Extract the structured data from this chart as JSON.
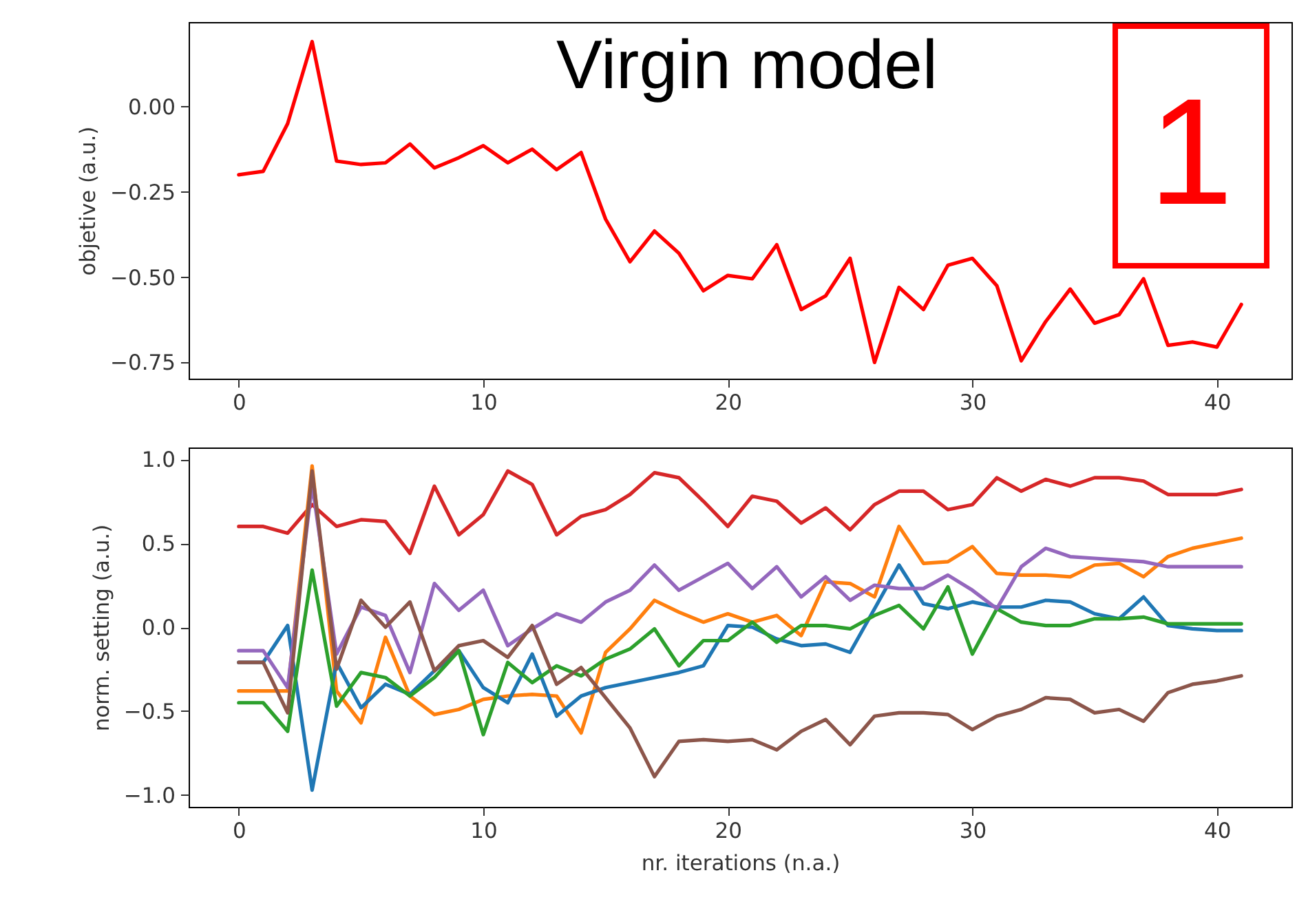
{
  "chart_data": [
    {
      "type": "line",
      "ylabel": "objetive (a.u.)",
      "annotations": [
        "Virgin model",
        "1"
      ],
      "x": [
        0,
        1,
        2,
        3,
        4,
        5,
        6,
        7,
        8,
        9,
        10,
        11,
        12,
        13,
        14,
        15,
        16,
        17,
        18,
        19,
        20,
        21,
        22,
        23,
        24,
        25,
        26,
        27,
        28,
        29,
        30,
        31,
        32,
        33,
        34,
        35,
        36,
        37,
        38,
        39,
        40,
        41
      ],
      "series": [
        {
          "color": "#ff0000",
          "values": [
            -0.2,
            -0.19,
            -0.05,
            0.19,
            -0.16,
            -0.17,
            -0.165,
            -0.11,
            -0.18,
            -0.15,
            -0.115,
            -0.165,
            -0.125,
            -0.185,
            -0.135,
            -0.33,
            -0.455,
            -0.365,
            -0.43,
            -0.54,
            -0.495,
            -0.505,
            -0.405,
            -0.595,
            -0.555,
            -0.445,
            -0.75,
            -0.53,
            -0.595,
            -0.465,
            -0.445,
            -0.525,
            -0.745,
            -0.63,
            -0.535,
            -0.635,
            -0.61,
            -0.505,
            -0.7,
            -0.69,
            -0.705,
            -0.58
          ]
        }
      ],
      "xlim": [
        -2.05,
        43.05
      ],
      "ylim": [
        -0.7975,
        0.2475
      ],
      "xticks": [
        0,
        10,
        20,
        30,
        40
      ],
      "yticks": [
        {
          "value": -0.75,
          "label": "−0.75"
        },
        {
          "value": -0.5,
          "label": "−0.50"
        },
        {
          "value": -0.25,
          "label": "−0.25"
        },
        {
          "value": 0,
          "label": "0.00"
        }
      ],
      "grid": false,
      "marker": "none",
      "line_style": "solid"
    },
    {
      "type": "line",
      "xlabel": "nr. iterations (n.a.)",
      "ylabel": "norm. setting (a.u.)",
      "x": [
        0,
        1,
        2,
        3,
        4,
        5,
        6,
        7,
        8,
        9,
        10,
        11,
        12,
        13,
        14,
        15,
        16,
        17,
        18,
        19,
        20,
        21,
        22,
        23,
        24,
        25,
        26,
        27,
        28,
        29,
        30,
        31,
        32,
        33,
        34,
        35,
        36,
        37,
        38,
        39,
        40,
        41
      ],
      "series": [
        {
          "color": "#d62728",
          "values": [
            0.6,
            0.6,
            0.56,
            0.73,
            0.6,
            0.64,
            0.63,
            0.44,
            0.84,
            0.55,
            0.67,
            0.93,
            0.85,
            0.55,
            0.66,
            0.7,
            0.79,
            0.92,
            0.89,
            0.75,
            0.6,
            0.78,
            0.75,
            0.62,
            0.71,
            0.58,
            0.73,
            0.81,
            0.81,
            0.7,
            0.73,
            0.89,
            0.81,
            0.88,
            0.84,
            0.89,
            0.89,
            0.87,
            0.79,
            0.79,
            0.79,
            0.82
          ]
        },
        {
          "color": "#ff7f0e",
          "values": [
            -0.38,
            -0.38,
            -0.38,
            0.96,
            -0.38,
            -0.57,
            -0.06,
            -0.41,
            -0.52,
            -0.49,
            -0.43,
            -0.41,
            -0.4,
            -0.41,
            -0.63,
            -0.15,
            -0.01,
            0.16,
            0.09,
            0.03,
            0.08,
            0.03,
            0.07,
            -0.05,
            0.27,
            0.26,
            0.18,
            0.6,
            0.38,
            0.39,
            0.48,
            0.32,
            0.31,
            0.31,
            0.3,
            0.37,
            0.38,
            0.3,
            0.42,
            0.47,
            0.5,
            0.53
          ]
        },
        {
          "color": "#1f77b4",
          "values": [
            -0.21,
            -0.21,
            0.01,
            -0.97,
            -0.21,
            -0.48,
            -0.34,
            -0.4,
            -0.26,
            -0.14,
            -0.36,
            -0.45,
            -0.16,
            -0.53,
            -0.41,
            -0.36,
            -0.33,
            -0.3,
            -0.27,
            -0.23,
            0.01,
            0.0,
            -0.07,
            -0.11,
            -0.1,
            -0.15,
            0.11,
            0.37,
            0.14,
            0.11,
            0.15,
            0.12,
            0.12,
            0.16,
            0.15,
            0.08,
            0.05,
            0.18,
            0.01,
            -0.01,
            -0.02,
            -0.02
          ]
        },
        {
          "color": "#2ca02c",
          "values": [
            -0.45,
            -0.45,
            -0.62,
            0.34,
            -0.47,
            -0.27,
            -0.3,
            -0.41,
            -0.3,
            -0.14,
            -0.64,
            -0.21,
            -0.33,
            -0.23,
            -0.29,
            -0.19,
            -0.13,
            -0.01,
            -0.23,
            -0.08,
            -0.08,
            0.03,
            -0.09,
            0.01,
            0.01,
            -0.01,
            0.07,
            0.13,
            -0.01,
            0.24,
            -0.16,
            0.11,
            0.03,
            0.01,
            0.01,
            0.05,
            0.05,
            0.06,
            0.02,
            0.02,
            0.02,
            0.02
          ]
        },
        {
          "color": "#9467bd",
          "values": [
            -0.14,
            -0.14,
            -0.36,
            0.85,
            -0.16,
            0.12,
            0.07,
            -0.27,
            0.26,
            0.1,
            0.22,
            -0.11,
            -0.01,
            0.08,
            0.03,
            0.15,
            0.22,
            0.37,
            0.22,
            0.3,
            0.38,
            0.23,
            0.36,
            0.18,
            0.3,
            0.16,
            0.25,
            0.23,
            0.23,
            0.31,
            0.22,
            0.11,
            0.36,
            0.47,
            0.42,
            0.41,
            0.4,
            0.39,
            0.36,
            0.36,
            0.36,
            0.36
          ]
        },
        {
          "color": "#8c564b",
          "values": [
            -0.21,
            -0.21,
            -0.51,
            0.93,
            -0.25,
            0.16,
            0.0,
            0.15,
            -0.26,
            -0.11,
            -0.08,
            -0.18,
            0.01,
            -0.34,
            -0.24,
            -0.42,
            -0.6,
            -0.89,
            -0.68,
            -0.67,
            -0.68,
            -0.67,
            -0.73,
            -0.62,
            -0.55,
            -0.7,
            -0.53,
            -0.51,
            -0.51,
            -0.52,
            -0.61,
            -0.53,
            -0.49,
            -0.42,
            -0.43,
            -0.51,
            -0.49,
            -0.56,
            -0.39,
            -0.34,
            -0.32,
            -0.29
          ]
        }
      ],
      "xlim": [
        -2.05,
        43.05
      ],
      "ylim": [
        -1.07,
        1.07
      ],
      "xticks": [
        0,
        10,
        20,
        30,
        40
      ],
      "yticks": [
        {
          "value": -1,
          "label": "−1.0"
        },
        {
          "value": -0.5,
          "label": "−0.5"
        },
        {
          "value": 0,
          "label": "0.0"
        },
        {
          "value": 0.5,
          "label": "0.5"
        },
        {
          "value": 1,
          "label": "1.0"
        }
      ],
      "grid": false,
      "marker": "none",
      "line_style": "solid"
    }
  ]
}
